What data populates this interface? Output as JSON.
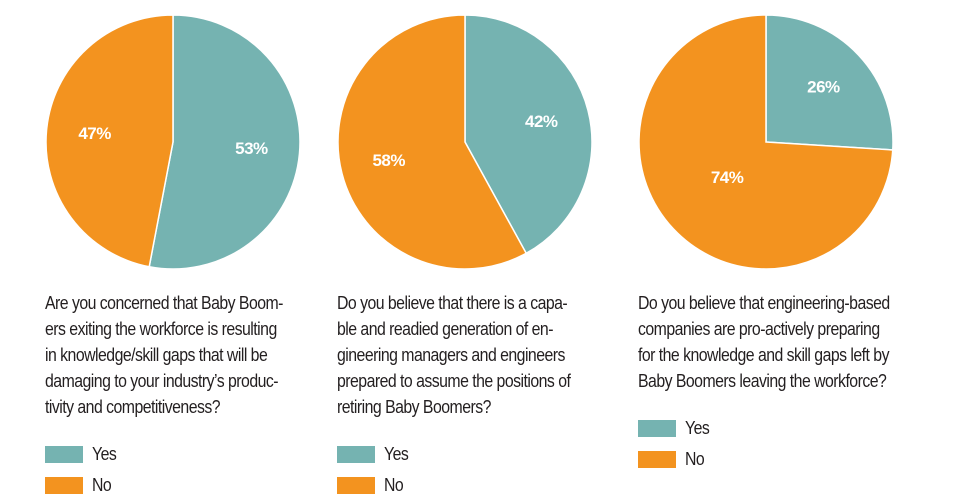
{
  "colors": {
    "yes": "#75b3b1",
    "no": "#f3931f",
    "divider": "#ffffff"
  },
  "legend": {
    "yes": "Yes",
    "no": "No"
  },
  "chart_data": [
    {
      "type": "pie",
      "title": "",
      "question": "Are you concerned that Baby Boom-\ners exiting the workforce is resulting\nin knowledge/skill gaps that will be\ndamaging to your industry’s produc-\ntivity and competitiveness?",
      "slices": [
        {
          "label": "Yes",
          "value": 53,
          "display": "53%"
        },
        {
          "label": "No",
          "value": 47,
          "display": "47%"
        }
      ]
    },
    {
      "type": "pie",
      "title": "",
      "question": "Do you believe that there is a capa-\nble and readied generation of en-\ngineering managers and engineers\nprepared to assume the positions of\nretiring Baby Boomers?",
      "slices": [
        {
          "label": "Yes",
          "value": 42,
          "display": "42%"
        },
        {
          "label": "No",
          "value": 58,
          "display": "58%"
        }
      ]
    },
    {
      "type": "pie",
      "title": "",
      "question": "Do you believe that engineering-based\ncompanies are pro-actively preparing\nfor the knowledge and skill gaps left by\nBaby Boomers leaving the workforce?",
      "slices": [
        {
          "label": "Yes",
          "value": 26,
          "display": "26%"
        },
        {
          "label": "No",
          "value": 74,
          "display": "74%"
        }
      ]
    }
  ]
}
